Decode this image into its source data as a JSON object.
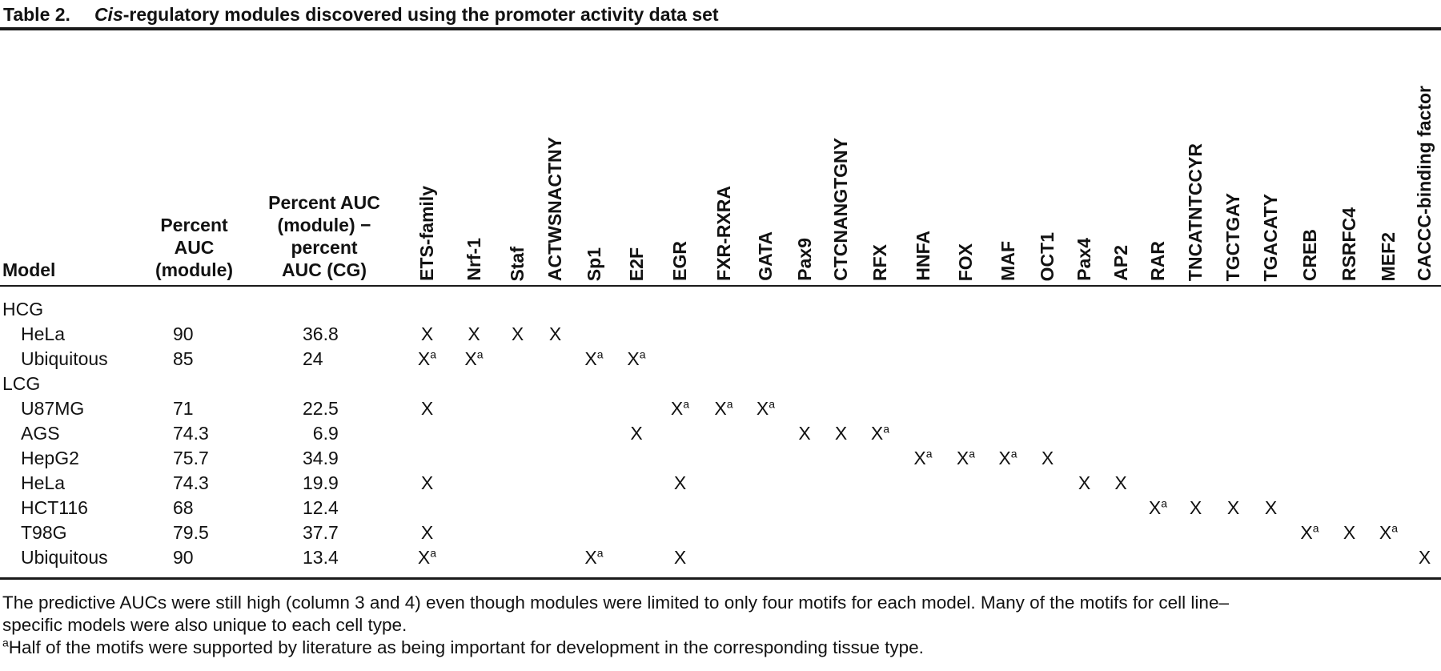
{
  "colors": {
    "background": "#ffffff",
    "text": "#121212",
    "rule": "#1a1a1a"
  },
  "title": {
    "label": "Table 2.",
    "italic_word": "Cis",
    "rest": "-regulatory modules discovered using the promoter activity data set"
  },
  "table": {
    "header": {
      "model": "Model",
      "auc_lines": [
        "Percent",
        "AUC",
        "(module)"
      ],
      "diff_lines": [
        "Percent AUC",
        "(module) −",
        "percent",
        "AUC (CG)"
      ]
    },
    "motifs": [
      "ETS-family",
      "Nrf-1",
      "Staf",
      "ACTWSNACTNY",
      "Sp1",
      "E2F",
      "EGR",
      "FXR-RXRA",
      "GATA",
      "Pax9",
      "CTCNANGTGNY",
      "RFX",
      "HNFA",
      "FOX",
      "MAF",
      "OCT1",
      "Pax4",
      "AP2",
      "RAR",
      "TNCATNTCCYR",
      "TGCTGAY",
      "TGACATY",
      "CREB",
      "RSRFC4",
      "MEF2",
      "CACCC-binding factor"
    ],
    "mark_glyph": "X",
    "sup_marker": "a",
    "rows": [
      {
        "type": "group",
        "label": "HCG"
      },
      {
        "type": "data",
        "model": "HeLa",
        "auc": "90",
        "diff": "36.8",
        "marks": [
          {
            "motif": "ETS-family",
            "sup": false
          },
          {
            "motif": "Nrf-1",
            "sup": false
          },
          {
            "motif": "Staf",
            "sup": false
          },
          {
            "motif": "ACTWSNACTNY",
            "sup": false
          }
        ]
      },
      {
        "type": "data",
        "model": "Ubiquitous",
        "auc": "85",
        "diff": "24",
        "marks": [
          {
            "motif": "ETS-family",
            "sup": true
          },
          {
            "motif": "Nrf-1",
            "sup": true
          },
          {
            "motif": "Sp1",
            "sup": true
          },
          {
            "motif": "E2F",
            "sup": true
          }
        ]
      },
      {
        "type": "group",
        "label": "LCG"
      },
      {
        "type": "data",
        "model": "U87MG",
        "auc": "71",
        "diff": "22.5",
        "marks": [
          {
            "motif": "ETS-family",
            "sup": false
          },
          {
            "motif": "EGR",
            "sup": true
          },
          {
            "motif": "FXR-RXRA",
            "sup": true
          },
          {
            "motif": "GATA",
            "sup": true
          }
        ]
      },
      {
        "type": "data",
        "model": "AGS",
        "auc": "74.3",
        "diff": "6.9",
        "marks": [
          {
            "motif": "E2F",
            "sup": false
          },
          {
            "motif": "Pax9",
            "sup": false
          },
          {
            "motif": "CTCNANGTGNY",
            "sup": false
          },
          {
            "motif": "RFX",
            "sup": true
          }
        ]
      },
      {
        "type": "data",
        "model": "HepG2",
        "auc": "75.7",
        "diff": "34.9",
        "marks": [
          {
            "motif": "HNFA",
            "sup": true
          },
          {
            "motif": "FOX",
            "sup": true
          },
          {
            "motif": "MAF",
            "sup": true
          },
          {
            "motif": "OCT1",
            "sup": false
          }
        ]
      },
      {
        "type": "data",
        "model": "HeLa",
        "auc": "74.3",
        "diff": "19.9",
        "marks": [
          {
            "motif": "ETS-family",
            "sup": false
          },
          {
            "motif": "EGR",
            "sup": false
          },
          {
            "motif": "Pax4",
            "sup": false
          },
          {
            "motif": "AP2",
            "sup": false
          }
        ]
      },
      {
        "type": "data",
        "model": "HCT116",
        "auc": "68",
        "diff": "12.4",
        "marks": [
          {
            "motif": "RAR",
            "sup": true
          },
          {
            "motif": "TNCATNTCCYR",
            "sup": false
          },
          {
            "motif": "TGCTGAY",
            "sup": false
          },
          {
            "motif": "TGACATY",
            "sup": false
          }
        ]
      },
      {
        "type": "data",
        "model": "T98G",
        "auc": "79.5",
        "diff": "37.7",
        "marks": [
          {
            "motif": "ETS-family",
            "sup": false
          },
          {
            "motif": "CREB",
            "sup": true
          },
          {
            "motif": "RSRFC4",
            "sup": false
          },
          {
            "motif": "MEF2",
            "sup": true
          }
        ]
      },
      {
        "type": "data",
        "model": "Ubiquitous",
        "auc": "90",
        "diff": "13.4",
        "marks": [
          {
            "motif": "ETS-family",
            "sup": true
          },
          {
            "motif": "Sp1",
            "sup": true
          },
          {
            "motif": "EGR",
            "sup": false
          },
          {
            "motif": "CACCC-binding factor",
            "sup": false
          }
        ]
      }
    ]
  },
  "footnotes": {
    "general": "The predictive AUCs were still high (column 3 and 4) even though modules were limited to only four motifs for each model. Many of the motifs for cell line–specific models were also unique to each cell type.",
    "a_marker": "a",
    "a_text": "Half of the motifs were supported by literature as being important for development in the corresponding tissue type."
  }
}
